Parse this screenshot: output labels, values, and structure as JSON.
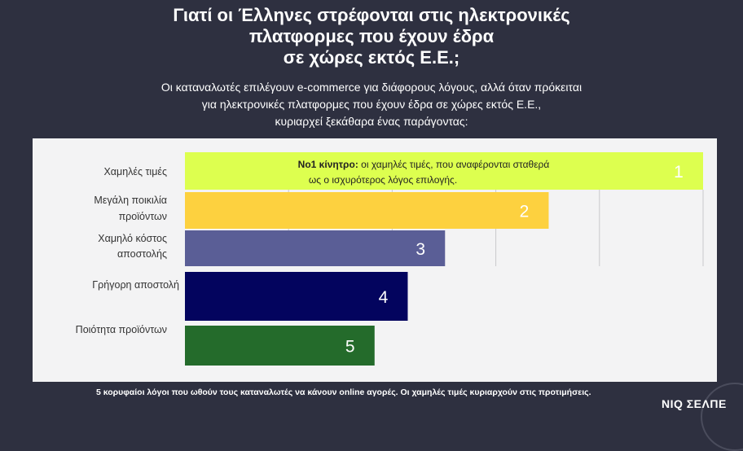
{
  "header": {
    "title_lines": [
      "Γιατί οι Έλληνες στρέφονται στις ηλεκτρονικές",
      "πλατφορμες που έχουν έδρα",
      "σε χώρες εκτός Ε.Ε.;"
    ],
    "subtitle_lines": [
      "Οι καταναλωτές επιλέγουν e-commerce για διάφορους λόγους, αλλά όταν πρόκειται",
      "για ηλεκτρονικές πλατφορμες που έχουν έδρα σε χώρες εκτός Ε.Ε.,",
      "κυριαρχεί ξεκάθαρα ένας παράγοντας:"
    ]
  },
  "chart_data": {
    "type": "bar",
    "orientation": "horizontal",
    "categories": [
      "Χαμηλές τιμές",
      "Μεγάλη ποικιλία προϊόντων",
      "Χαμηλό κόστος αποστολής",
      "Γρήγορη αποστολή",
      "Ποιότητα προϊόντων"
    ],
    "values": [
      5.0,
      3.51,
      2.51,
      2.15,
      1.83
    ],
    "data_labels": [
      "1",
      "2",
      "3",
      "4",
      "5"
    ],
    "colors": [
      "#ddff4f",
      "#fdd13f",
      "#5a5e96",
      "#03045e",
      "#246b2b"
    ],
    "xlim": [
      0,
      5
    ],
    "grid": true,
    "annotation": {
      "bold": "No1 κίνητρο:",
      "text_line1": " οι χαμηλές τιμές, που αναφέρονται σταθερά",
      "text_line2": "ως ο ισχυρότερος λόγος επιλογής."
    }
  },
  "footer": {
    "note": "5 κορυφαίοι λόγοι που ωθούν τους καταναλωτές να κάνουν online αγορές. Οι χαμηλές τιμές κυριαρχούν στις προτιμήσεις.",
    "logo": "NIQ ΣΕΛΠΕ"
  }
}
